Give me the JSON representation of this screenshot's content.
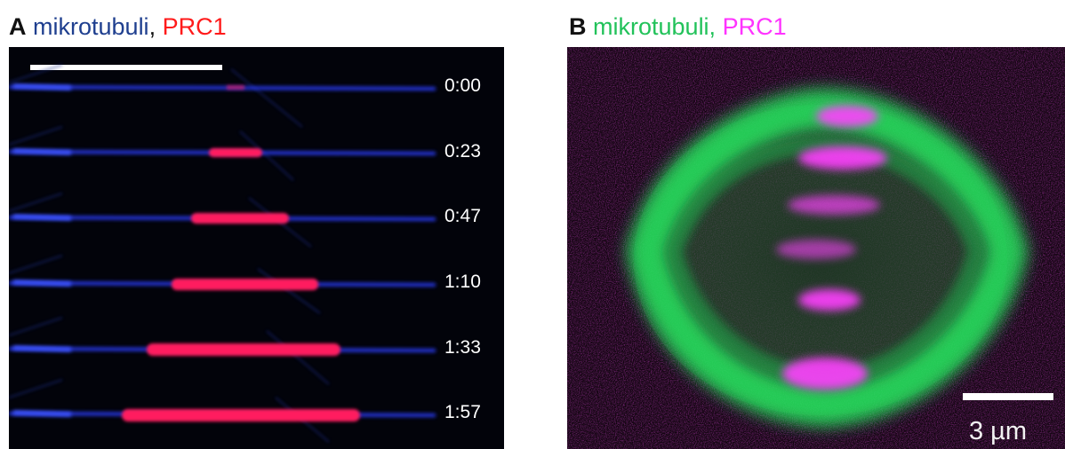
{
  "panel_a": {
    "letter": "A",
    "label_channel1": "mikrotubuli",
    "separator": ",",
    "label_channel2": "PRC1",
    "color_channel1": "#1f3f8f",
    "color_channel2": "#ff1a1a",
    "timestamps": [
      "0:00",
      "0:23",
      "0:47",
      "1:10",
      "1:33",
      "1:57"
    ]
  },
  "panel_b": {
    "letter": "B",
    "label_channel1": "mikrotubuli,",
    "label_channel2": "PRC1",
    "color_channel1": "#22c25a",
    "color_channel2": "#ff33ff",
    "scale_bar_label": "3 µm"
  }
}
